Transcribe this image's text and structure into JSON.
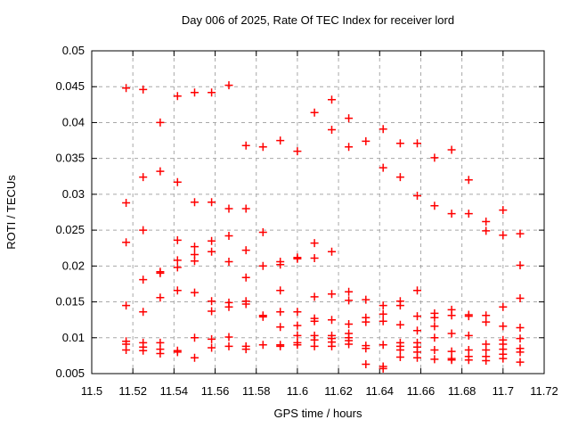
{
  "page": {
    "background": "#ffffff",
    "text_color": "#000000"
  },
  "chart_data": {
    "type": "scatter",
    "title": "Day 006 of 2025, Rate Of TEC Index for receiver lord",
    "xlabel": "GPS time / hours",
    "ylabel": "ROTI / TECUs",
    "xlim": [
      11.5,
      11.72
    ],
    "ylim": [
      0.005,
      0.05
    ],
    "grid": true,
    "legend_position": "none",
    "marker": "plus",
    "marker_color": "#ff0000",
    "grid_color": "#a8a8a8",
    "border_color": "#000000",
    "xticks": [
      {
        "value": 11.5,
        "label": "11.5"
      },
      {
        "value": 11.52,
        "label": "11.52"
      },
      {
        "value": 11.54,
        "label": "11.54"
      },
      {
        "value": 11.56,
        "label": "11.56"
      },
      {
        "value": 11.58,
        "label": "11.58"
      },
      {
        "value": 11.6,
        "label": "11.6"
      },
      {
        "value": 11.62,
        "label": "11.62"
      },
      {
        "value": 11.64,
        "label": "11.64"
      },
      {
        "value": 11.66,
        "label": "11.66"
      },
      {
        "value": 11.68,
        "label": "11.68"
      },
      {
        "value": 11.7,
        "label": "11.7"
      },
      {
        "value": 11.72,
        "label": "11.72"
      }
    ],
    "yticks": [
      {
        "value": 0.005,
        "label": "0.005"
      },
      {
        "value": 0.01,
        "label": "0.01"
      },
      {
        "value": 0.015,
        "label": "0.015"
      },
      {
        "value": 0.02,
        "label": "0.02"
      },
      {
        "value": 0.025,
        "label": "0.025"
      },
      {
        "value": 0.03,
        "label": "0.03"
      },
      {
        "value": 0.035,
        "label": "0.035"
      },
      {
        "value": 0.04,
        "label": "0.04"
      },
      {
        "value": 0.045,
        "label": "0.045"
      },
      {
        "value": 0.05,
        "label": "0.05"
      }
    ],
    "series": [
      {
        "name": "ROTI",
        "points": [
          [
            11.5167,
            0.0448
          ],
          [
            11.5167,
            0.0288
          ],
          [
            11.5167,
            0.0233
          ],
          [
            11.5167,
            0.0145
          ],
          [
            11.5167,
            0.0095
          ],
          [
            11.5167,
            0.0091
          ],
          [
            11.5167,
            0.0083
          ],
          [
            11.525,
            0.0446
          ],
          [
            11.525,
            0.0324
          ],
          [
            11.525,
            0.025
          ],
          [
            11.525,
            0.0181
          ],
          [
            11.525,
            0.0136
          ],
          [
            11.525,
            0.0093
          ],
          [
            11.525,
            0.0087
          ],
          [
            11.525,
            0.0082
          ],
          [
            11.5333,
            0.04
          ],
          [
            11.5333,
            0.0332
          ],
          [
            11.5333,
            0.0192
          ],
          [
            11.5333,
            0.019
          ],
          [
            11.5333,
            0.0156
          ],
          [
            11.5333,
            0.0093
          ],
          [
            11.5333,
            0.0084
          ],
          [
            11.5333,
            0.0078
          ],
          [
            11.5417,
            0.0437
          ],
          [
            11.5417,
            0.0317
          ],
          [
            11.5417,
            0.0236
          ],
          [
            11.5417,
            0.0208
          ],
          [
            11.5417,
            0.0198
          ],
          [
            11.5417,
            0.0166
          ],
          [
            11.5417,
            0.0082
          ],
          [
            11.5417,
            0.008
          ],
          [
            11.55,
            0.0442
          ],
          [
            11.55,
            0.0289
          ],
          [
            11.55,
            0.0227
          ],
          [
            11.55,
            0.0216
          ],
          [
            11.55,
            0.0207
          ],
          [
            11.55,
            0.0163
          ],
          [
            11.55,
            0.01
          ],
          [
            11.55,
            0.0072
          ],
          [
            11.5583,
            0.0442
          ],
          [
            11.5583,
            0.0289
          ],
          [
            11.5583,
            0.0235
          ],
          [
            11.5583,
            0.022
          ],
          [
            11.5583,
            0.0151
          ],
          [
            11.5583,
            0.0137
          ],
          [
            11.5583,
            0.0098
          ],
          [
            11.5583,
            0.0086
          ],
          [
            11.5667,
            0.0452
          ],
          [
            11.5667,
            0.028
          ],
          [
            11.5667,
            0.0242
          ],
          [
            11.5667,
            0.0206
          ],
          [
            11.5667,
            0.0149
          ],
          [
            11.5667,
            0.0143
          ],
          [
            11.5667,
            0.0101
          ],
          [
            11.5667,
            0.0088
          ],
          [
            11.575,
            0.0368
          ],
          [
            11.575,
            0.028
          ],
          [
            11.575,
            0.0222
          ],
          [
            11.575,
            0.0184
          ],
          [
            11.575,
            0.0151
          ],
          [
            11.575,
            0.0147
          ],
          [
            11.575,
            0.0088
          ],
          [
            11.575,
            0.0084
          ],
          [
            11.5833,
            0.0366
          ],
          [
            11.5833,
            0.0247
          ],
          [
            11.5833,
            0.02
          ],
          [
            11.5833,
            0.0131
          ],
          [
            11.5833,
            0.0129
          ],
          [
            11.5833,
            0.009
          ],
          [
            11.5917,
            0.0375
          ],
          [
            11.5917,
            0.0206
          ],
          [
            11.5917,
            0.0202
          ],
          [
            11.5917,
            0.0166
          ],
          [
            11.5917,
            0.0136
          ],
          [
            11.5917,
            0.0115
          ],
          [
            11.5917,
            0.009
          ],
          [
            11.5917,
            0.0088
          ],
          [
            11.6,
            0.036
          ],
          [
            11.6,
            0.0212
          ],
          [
            11.6,
            0.021
          ],
          [
            11.6,
            0.0136
          ],
          [
            11.6,
            0.0117
          ],
          [
            11.6,
            0.0103
          ],
          [
            11.6,
            0.0093
          ],
          [
            11.6,
            0.009
          ],
          [
            11.6083,
            0.0414
          ],
          [
            11.6083,
            0.0232
          ],
          [
            11.6083,
            0.0211
          ],
          [
            11.6083,
            0.0157
          ],
          [
            11.6083,
            0.0127
          ],
          [
            11.6083,
            0.0123
          ],
          [
            11.6083,
            0.0103
          ],
          [
            11.6083,
            0.0097
          ],
          [
            11.6083,
            0.0088
          ],
          [
            11.6167,
            0.0432
          ],
          [
            11.6167,
            0.039
          ],
          [
            11.6167,
            0.022
          ],
          [
            11.6167,
            0.0161
          ],
          [
            11.6167,
            0.0125
          ],
          [
            11.6167,
            0.0103
          ],
          [
            11.6167,
            0.0099
          ],
          [
            11.6167,
            0.0094
          ],
          [
            11.6167,
            0.0088
          ],
          [
            11.625,
            0.0406
          ],
          [
            11.625,
            0.0366
          ],
          [
            11.625,
            0.0164
          ],
          [
            11.625,
            0.0152
          ],
          [
            11.625,
            0.0119
          ],
          [
            11.625,
            0.0106
          ],
          [
            11.625,
            0.01
          ],
          [
            11.625,
            0.0096
          ],
          [
            11.625,
            0.0091
          ],
          [
            11.6333,
            0.0374
          ],
          [
            11.6333,
            0.0153
          ],
          [
            11.6333,
            0.0128
          ],
          [
            11.6333,
            0.0122
          ],
          [
            11.6333,
            0.0089
          ],
          [
            11.6333,
            0.0085
          ],
          [
            11.6333,
            0.0063
          ],
          [
            11.6417,
            0.0391
          ],
          [
            11.6417,
            0.0337
          ],
          [
            11.6417,
            0.0145
          ],
          [
            11.6417,
            0.0133
          ],
          [
            11.6417,
            0.0123
          ],
          [
            11.6417,
            0.009
          ],
          [
            11.6417,
            0.006
          ],
          [
            11.6417,
            0.0057
          ],
          [
            11.65,
            0.0371
          ],
          [
            11.65,
            0.0324
          ],
          [
            11.65,
            0.0151
          ],
          [
            11.65,
            0.0145
          ],
          [
            11.65,
            0.0118
          ],
          [
            11.65,
            0.0093
          ],
          [
            11.65,
            0.0088
          ],
          [
            11.65,
            0.0083
          ],
          [
            11.65,
            0.0073
          ],
          [
            11.6583,
            0.0371
          ],
          [
            11.6583,
            0.0298
          ],
          [
            11.6583,
            0.0166
          ],
          [
            11.6583,
            0.013
          ],
          [
            11.6583,
            0.011
          ],
          [
            11.6583,
            0.0093
          ],
          [
            11.6583,
            0.0087
          ],
          [
            11.6583,
            0.008
          ],
          [
            11.6583,
            0.0072
          ],
          [
            11.6667,
            0.0351
          ],
          [
            11.6667,
            0.0284
          ],
          [
            11.6667,
            0.0134
          ],
          [
            11.6667,
            0.0128
          ],
          [
            11.6667,
            0.0116
          ],
          [
            11.6667,
            0.01
          ],
          [
            11.6667,
            0.0083
          ],
          [
            11.6667,
            0.007
          ],
          [
            11.675,
            0.0362
          ],
          [
            11.675,
            0.0273
          ],
          [
            11.675,
            0.0139
          ],
          [
            11.675,
            0.0131
          ],
          [
            11.675,
            0.0106
          ],
          [
            11.675,
            0.0081
          ],
          [
            11.675,
            0.0071
          ],
          [
            11.675,
            0.0069
          ],
          [
            11.6833,
            0.032
          ],
          [
            11.6833,
            0.0273
          ],
          [
            11.6833,
            0.0132
          ],
          [
            11.6833,
            0.013
          ],
          [
            11.6833,
            0.0103
          ],
          [
            11.6833,
            0.0083
          ],
          [
            11.6833,
            0.0074
          ],
          [
            11.6833,
            0.0069
          ],
          [
            11.6917,
            0.0262
          ],
          [
            11.6917,
            0.0249
          ],
          [
            11.6917,
            0.0131
          ],
          [
            11.6917,
            0.0122
          ],
          [
            11.6917,
            0.0091
          ],
          [
            11.6917,
            0.0083
          ],
          [
            11.6917,
            0.0074
          ],
          [
            11.6917,
            0.0068
          ],
          [
            11.7,
            0.0278
          ],
          [
            11.7,
            0.0243
          ],
          [
            11.7,
            0.0143
          ],
          [
            11.7,
            0.0116
          ],
          [
            11.7,
            0.0097
          ],
          [
            11.7,
            0.0091
          ],
          [
            11.7,
            0.0084
          ],
          [
            11.7,
            0.0077
          ],
          [
            11.7,
            0.0071
          ],
          [
            11.7083,
            0.0245
          ],
          [
            11.7083,
            0.0201
          ],
          [
            11.7083,
            0.0155
          ],
          [
            11.7083,
            0.0114
          ],
          [
            11.7083,
            0.0099
          ],
          [
            11.7083,
            0.0085
          ],
          [
            11.7083,
            0.008
          ],
          [
            11.7083,
            0.0066
          ]
        ]
      }
    ]
  }
}
